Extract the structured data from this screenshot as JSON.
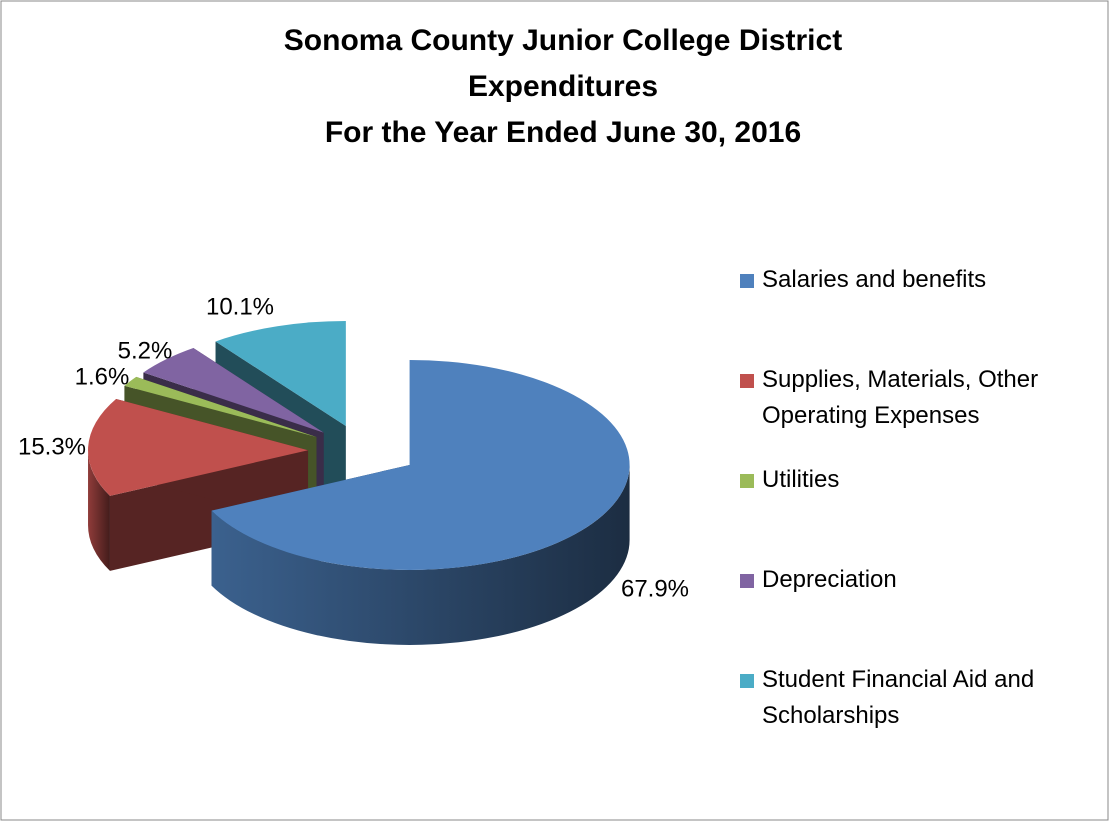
{
  "chart_data": {
    "type": "pie",
    "title": [
      "Sonoma County Junior College District",
      "Expenditures",
      "For the Year Ended June 30, 2016"
    ],
    "categories": [
      "Salaries and benefits",
      "Supplies, Materials, Other Operating Expenses",
      "Utilities",
      "Depreciation",
      "Student Financial Aid and Scholarships"
    ],
    "values": [
      67.9,
      15.3,
      1.6,
      5.2,
      10.1
    ],
    "value_labels": [
      "67.9%",
      "15.3%",
      "1.6%",
      "5.2%",
      "10.1%"
    ],
    "colors": [
      "#4f81bd",
      "#c0504d",
      "#9bbb59",
      "#8064a2",
      "#4bacc6"
    ],
    "legend": "right"
  }
}
